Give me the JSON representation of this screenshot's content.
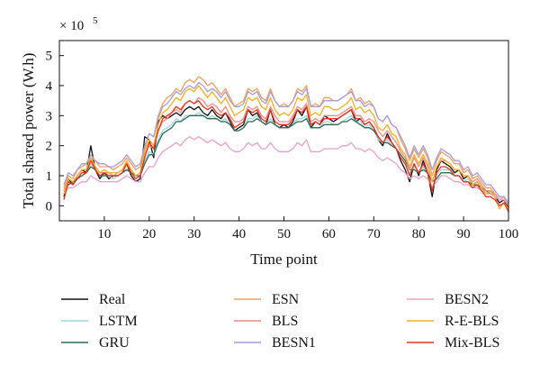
{
  "chart_data": {
    "type": "line",
    "xlabel": "Time point",
    "ylabel": "Total shared power (W.h)",
    "scale_label": "× 10",
    "scale_exp": "5",
    "xlim": [
      0,
      100
    ],
    "ylim": [
      -0.5,
      5.5
    ],
    "xticks": [
      10,
      20,
      30,
      40,
      50,
      60,
      70,
      80,
      90,
      100
    ],
    "yticks": [
      0,
      1,
      2,
      3,
      4,
      5
    ],
    "grid": false,
    "legend_position": "bottom",
    "series": [
      {
        "name": "Real",
        "color": "#111111",
        "values": [
          0.3,
          0.9,
          0.7,
          1.0,
          1.2,
          1.1,
          2.0,
          1.2,
          0.9,
          1.1,
          0.9,
          1.0,
          1.0,
          1.1,
          1.4,
          1.0,
          0.8,
          0.9,
          2.3,
          2.2,
          1.6,
          2.8,
          3.0,
          2.9,
          3.0,
          3.1,
          3.0,
          3.2,
          3.3,
          3.2,
          3.3,
          3.1,
          3.0,
          3.2,
          3.0,
          2.9,
          3.1,
          2.8,
          2.5,
          2.6,
          2.7,
          3.2,
          3.0,
          3.1,
          2.8,
          2.7,
          3.2,
          2.7,
          2.6,
          2.7,
          2.6,
          2.8,
          3.2,
          3.0,
          3.3,
          2.6,
          2.8,
          2.7,
          3.0,
          2.9,
          2.8,
          2.9,
          3.0,
          3.1,
          3.2,
          2.8,
          2.9,
          2.7,
          2.8,
          2.6,
          2.2,
          2.0,
          2.4,
          2.1,
          1.9,
          1.5,
          1.2,
          0.8,
          1.4,
          1.0,
          1.5,
          1.1,
          0.3,
          1.2,
          1.5,
          1.4,
          1.3,
          1.1,
          1.2,
          0.9,
          1.0,
          0.7,
          0.8,
          0.6,
          0.4,
          0.5,
          0.3,
          0.1,
          0.2,
          -0.1
        ]
      },
      {
        "name": "LSTM",
        "color": "#9ed6de",
        "values": [
          0.4,
          0.8,
          0.7,
          0.9,
          1.1,
          1.1,
          1.4,
          1.2,
          1.0,
          1.0,
          1.0,
          0.9,
          1.0,
          1.1,
          1.2,
          1.1,
          0.9,
          1.0,
          1.5,
          1.8,
          1.7,
          2.2,
          2.5,
          2.6,
          2.7,
          2.9,
          2.8,
          3.0,
          3.0,
          3.0,
          3.1,
          3.0,
          2.9,
          3.0,
          2.9,
          2.8,
          2.9,
          2.7,
          2.5,
          2.5,
          2.6,
          2.9,
          2.9,
          3.0,
          2.8,
          2.7,
          2.9,
          2.7,
          2.6,
          2.6,
          2.6,
          2.7,
          2.9,
          2.9,
          3.0,
          2.6,
          2.6,
          2.6,
          2.8,
          2.8,
          2.7,
          2.7,
          2.8,
          2.9,
          3.0,
          2.8,
          2.8,
          2.6,
          2.7,
          2.5,
          2.2,
          2.1,
          2.2,
          2.0,
          1.9,
          1.6,
          1.4,
          1.1,
          1.3,
          1.1,
          1.3,
          1.1,
          0.6,
          1.0,
          1.2,
          1.2,
          1.2,
          1.0,
          1.0,
          0.8,
          0.9,
          0.7,
          0.7,
          0.6,
          0.4,
          0.4,
          0.3,
          0.2,
          0.2,
          0.0
        ]
      },
      {
        "name": "GRU",
        "color": "#2e6b52",
        "values": [
          0.5,
          0.7,
          0.8,
          0.9,
          1.0,
          1.1,
          1.3,
          1.2,
          1.0,
          1.0,
          1.0,
          1.0,
          1.0,
          1.1,
          1.2,
          1.1,
          1.0,
          1.0,
          1.4,
          1.7,
          1.7,
          2.1,
          2.4,
          2.5,
          2.6,
          2.8,
          2.8,
          2.9,
          3.0,
          3.0,
          3.0,
          3.0,
          2.9,
          2.9,
          2.9,
          2.8,
          2.8,
          2.7,
          2.5,
          2.5,
          2.6,
          2.8,
          2.8,
          2.9,
          2.8,
          2.7,
          2.8,
          2.7,
          2.6,
          2.6,
          2.6,
          2.7,
          2.8,
          2.8,
          2.9,
          2.6,
          2.6,
          2.6,
          2.7,
          2.7,
          2.7,
          2.7,
          2.8,
          2.8,
          2.9,
          2.8,
          2.7,
          2.6,
          2.6,
          2.5,
          2.3,
          2.1,
          2.1,
          2.0,
          1.9,
          1.7,
          1.5,
          1.2,
          1.2,
          1.1,
          1.2,
          1.1,
          0.8,
          0.9,
          1.1,
          1.1,
          1.1,
          1.0,
          1.0,
          0.8,
          0.8,
          0.7,
          0.7,
          0.6,
          0.5,
          0.4,
          0.3,
          0.2,
          0.2,
          0.1
        ]
      },
      {
        "name": "ESN",
        "color": "#f0a060",
        "values": [
          0.6,
          1.0,
          0.9,
          1.2,
          1.3,
          1.4,
          1.6,
          1.5,
          1.3,
          1.3,
          1.3,
          1.2,
          1.3,
          1.4,
          1.6,
          1.4,
          1.2,
          1.3,
          1.9,
          2.4,
          2.3,
          3.0,
          3.4,
          3.6,
          3.7,
          3.9,
          3.8,
          4.1,
          4.2,
          4.1,
          4.3,
          4.2,
          4.0,
          4.1,
          3.9,
          3.7,
          3.9,
          3.6,
          3.3,
          3.4,
          3.5,
          3.9,
          3.8,
          3.9,
          3.6,
          3.5,
          3.9,
          3.5,
          3.3,
          3.4,
          3.3,
          3.5,
          3.9,
          3.8,
          4.0,
          3.3,
          3.4,
          3.3,
          3.6,
          3.6,
          3.5,
          3.5,
          3.6,
          3.7,
          3.9,
          3.5,
          3.6,
          3.4,
          3.5,
          3.3,
          2.9,
          2.8,
          3.0,
          2.7,
          2.6,
          2.2,
          1.9,
          1.5,
          1.9,
          1.6,
          1.9,
          1.6,
          1.0,
          1.5,
          1.8,
          1.7,
          1.6,
          1.4,
          1.4,
          1.1,
          1.2,
          0.9,
          1.0,
          0.8,
          0.6,
          0.6,
          0.4,
          0.2,
          0.3,
          0.0
        ]
      },
      {
        "name": "BLS",
        "color": "#ee8a8a",
        "values": [
          0.5,
          0.9,
          0.8,
          1.0,
          1.2,
          1.2,
          1.5,
          1.3,
          1.1,
          1.1,
          1.1,
          1.0,
          1.1,
          1.2,
          1.4,
          1.2,
          1.0,
          1.1,
          1.7,
          2.0,
          1.9,
          2.5,
          2.8,
          2.9,
          3.1,
          3.2,
          3.1,
          3.4,
          3.5,
          3.4,
          3.6,
          3.5,
          3.3,
          3.4,
          3.3,
          3.1,
          3.3,
          3.0,
          2.8,
          2.8,
          2.9,
          3.3,
          3.2,
          3.3,
          3.0,
          2.9,
          3.3,
          3.0,
          2.8,
          2.8,
          2.8,
          3.0,
          3.3,
          3.2,
          3.4,
          2.8,
          2.9,
          2.8,
          3.0,
          3.0,
          3.0,
          3.0,
          3.1,
          3.2,
          3.3,
          3.0,
          3.0,
          2.8,
          2.9,
          2.8,
          2.5,
          2.3,
          2.5,
          2.3,
          2.1,
          1.8,
          1.6,
          1.2,
          1.6,
          1.3,
          1.6,
          1.3,
          0.8,
          1.3,
          1.5,
          1.5,
          1.4,
          1.2,
          1.2,
          1.0,
          1.0,
          0.8,
          0.9,
          0.7,
          0.5,
          0.5,
          0.4,
          0.2,
          0.2,
          0.0
        ]
      },
      {
        "name": "BESN1",
        "color": "#a99bd8",
        "values": [
          0.7,
          1.1,
          1.0,
          1.2,
          1.4,
          1.4,
          1.7,
          1.5,
          1.4,
          1.4,
          1.3,
          1.3,
          1.4,
          1.5,
          1.7,
          1.5,
          1.3,
          1.4,
          2.0,
          2.4,
          2.3,
          2.9,
          3.3,
          3.4,
          3.6,
          3.8,
          3.7,
          3.9,
          4.0,
          3.9,
          4.1,
          4.0,
          3.8,
          3.9,
          3.8,
          3.6,
          3.8,
          3.5,
          3.3,
          3.3,
          3.4,
          3.8,
          3.7,
          3.8,
          3.5,
          3.4,
          3.8,
          3.5,
          3.3,
          3.3,
          3.3,
          3.5,
          3.8,
          3.7,
          3.9,
          3.3,
          3.3,
          3.3,
          3.5,
          3.5,
          3.5,
          3.5,
          3.6,
          3.7,
          3.8,
          3.5,
          3.5,
          3.3,
          3.4,
          3.3,
          2.9,
          2.8,
          3.0,
          2.7,
          2.6,
          2.3,
          2.0,
          1.6,
          2.0,
          1.7,
          2.0,
          1.7,
          1.2,
          1.6,
          1.9,
          1.8,
          1.7,
          1.5,
          1.5,
          1.2,
          1.3,
          1.0,
          1.1,
          0.9,
          0.7,
          0.7,
          0.5,
          0.3,
          0.3,
          0.1
        ]
      },
      {
        "name": "BESN2",
        "color": "#e8a0c8",
        "values": [
          0.4,
          0.6,
          0.6,
          0.7,
          0.8,
          0.8,
          1.0,
          0.9,
          0.8,
          0.8,
          0.8,
          0.8,
          0.8,
          0.9,
          1.0,
          0.9,
          0.8,
          0.8,
          1.1,
          1.3,
          1.3,
          1.6,
          1.8,
          1.9,
          2.0,
          2.1,
          2.0,
          2.2,
          2.3,
          2.2,
          2.3,
          2.2,
          2.1,
          2.2,
          2.1,
          2.0,
          2.1,
          1.9,
          1.8,
          1.8,
          1.9,
          2.1,
          2.0,
          2.1,
          1.9,
          1.9,
          2.1,
          1.9,
          1.8,
          1.8,
          1.8,
          1.9,
          2.1,
          2.0,
          2.2,
          1.8,
          1.8,
          1.8,
          1.9,
          1.9,
          1.9,
          1.9,
          2.0,
          2.0,
          2.1,
          1.9,
          1.9,
          1.8,
          1.9,
          1.8,
          1.6,
          1.5,
          1.6,
          1.5,
          1.4,
          1.2,
          1.1,
          0.9,
          1.0,
          0.9,
          1.0,
          0.9,
          0.6,
          0.8,
          1.0,
          1.0,
          0.9,
          0.8,
          0.8,
          0.7,
          0.7,
          0.6,
          0.6,
          0.5,
          0.4,
          0.4,
          0.3,
          0.2,
          0.2,
          0.1
        ]
      },
      {
        "name": "R-E-BLS",
        "color": "#f0b020",
        "values": [
          0.4,
          0.9,
          0.8,
          1.0,
          1.2,
          1.2,
          1.6,
          1.3,
          1.1,
          1.2,
          1.1,
          1.1,
          1.1,
          1.2,
          1.5,
          1.2,
          1.0,
          1.1,
          1.8,
          2.2,
          2.0,
          2.7,
          3.1,
          3.2,
          3.4,
          3.6,
          3.5,
          3.8,
          3.9,
          3.8,
          4.0,
          3.8,
          3.6,
          3.8,
          3.6,
          3.4,
          3.6,
          3.3,
          3.0,
          3.1,
          3.2,
          3.6,
          3.5,
          3.6,
          3.3,
          3.2,
          3.6,
          3.2,
          3.0,
          3.1,
          3.0,
          3.2,
          3.6,
          3.5,
          3.7,
          3.0,
          3.1,
          3.0,
          3.3,
          3.3,
          3.2,
          3.2,
          3.3,
          3.4,
          3.6,
          3.2,
          3.3,
          3.1,
          3.2,
          3.0,
          2.6,
          2.5,
          2.7,
          2.4,
          2.3,
          1.9,
          1.7,
          1.3,
          1.7,
          1.4,
          1.7,
          1.4,
          0.8,
          1.3,
          1.6,
          1.5,
          1.4,
          1.2,
          1.2,
          1.0,
          1.0,
          0.7,
          0.8,
          0.6,
          0.4,
          0.5,
          0.3,
          -0.1,
          0.1,
          -0.1
        ]
      },
      {
        "name": "Mix-BLS",
        "color": "#e8341c",
        "values": [
          0.2,
          0.8,
          0.7,
          0.9,
          1.1,
          1.1,
          1.5,
          1.2,
          1.0,
          1.1,
          1.0,
          1.0,
          1.0,
          1.1,
          1.4,
          1.1,
          0.9,
          1.0,
          1.6,
          2.1,
          1.9,
          2.5,
          2.9,
          3.0,
          3.1,
          3.3,
          3.2,
          3.4,
          3.5,
          3.4,
          3.5,
          3.3,
          3.2,
          3.3,
          3.1,
          3.0,
          3.1,
          2.9,
          2.6,
          2.7,
          2.8,
          3.2,
          3.1,
          3.2,
          2.9,
          2.8,
          3.2,
          2.8,
          2.7,
          2.7,
          2.7,
          2.9,
          3.2,
          3.1,
          3.3,
          2.7,
          2.8,
          2.7,
          2.9,
          2.9,
          2.9,
          2.9,
          3.0,
          3.1,
          3.2,
          2.9,
          2.9,
          2.7,
          2.8,
          2.6,
          2.3,
          2.1,
          2.3,
          2.1,
          1.9,
          1.6,
          1.4,
          1.0,
          1.4,
          1.1,
          1.4,
          1.1,
          0.5,
          1.1,
          1.3,
          1.3,
          1.2,
          1.0,
          1.0,
          0.8,
          0.8,
          0.6,
          0.7,
          0.5,
          0.3,
          0.3,
          0.2,
          0.0,
          0.1,
          -0.2
        ]
      }
    ]
  }
}
